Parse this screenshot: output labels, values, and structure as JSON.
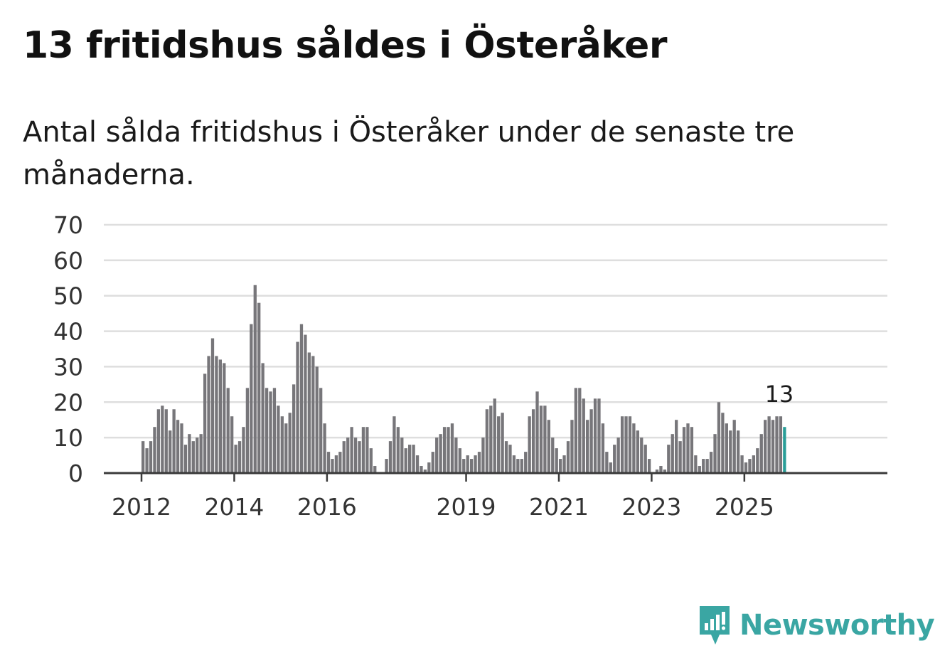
{
  "title": "13 fritidshus såldes i Österåker",
  "subtitle": "Antal sålda fritidshus i Österåker under de senaste tre månaderna.",
  "brand": {
    "name": "Newsworthy",
    "color": "#3aa6a3"
  },
  "chart_data": {
    "type": "bar",
    "title": "13 fritidshus såldes i Österåker",
    "xlabel": "",
    "ylabel": "",
    "ylim": [
      0,
      70
    ],
    "yticks": [
      0,
      10,
      20,
      30,
      40,
      50,
      60,
      70
    ],
    "xticks": [
      {
        "label": "2012",
        "index": 0
      },
      {
        "label": "2014",
        "index": 24
      },
      {
        "label": "2016",
        "index": 48
      },
      {
        "label": "2019",
        "index": 84
      },
      {
        "label": "2021",
        "index": 108
      },
      {
        "label": "2023",
        "index": 132
      },
      {
        "label": "2025",
        "index": 156
      }
    ],
    "start": "2012-01",
    "grid": true,
    "bar_color": "#77767a",
    "highlight_color": "#2a9e98",
    "highlight_last": true,
    "annotation": {
      "index": 165,
      "text": "13"
    },
    "values": [
      9,
      7,
      9,
      13,
      18,
      19,
      18,
      12,
      18,
      15,
      14,
      8,
      11,
      9,
      10,
      11,
      28,
      33,
      38,
      33,
      32,
      31,
      24,
      16,
      8,
      9,
      13,
      24,
      42,
      53,
      48,
      31,
      24,
      23,
      24,
      19,
      16,
      14,
      17,
      25,
      37,
      42,
      39,
      34,
      33,
      30,
      24,
      14,
      6,
      4,
      5,
      6,
      9,
      10,
      13,
      10,
      9,
      13,
      13,
      7,
      2,
      0,
      0,
      4,
      9,
      16,
      13,
      10,
      7,
      8,
      8,
      5,
      2,
      1,
      3,
      6,
      10,
      11,
      13,
      13,
      14,
      10,
      7,
      4,
      5,
      4,
      5,
      6,
      10,
      18,
      19,
      21,
      16,
      17,
      9,
      8,
      5,
      4,
      4,
      6,
      16,
      18,
      23,
      19,
      19,
      15,
      10,
      7,
      4,
      5,
      9,
      15,
      24,
      24,
      21,
      15,
      18,
      21,
      21,
      14,
      6,
      3,
      8,
      10,
      16,
      16,
      16,
      14,
      12,
      10,
      8,
      4,
      0,
      1,
      2,
      1,
      8,
      11,
      15,
      9,
      13,
      14,
      13,
      5,
      2,
      4,
      4,
      6,
      11,
      20,
      17,
      14,
      12,
      15,
      12,
      5,
      3,
      4,
      5,
      7,
      11,
      15,
      16,
      15,
      16,
      16,
      13
    ]
  }
}
